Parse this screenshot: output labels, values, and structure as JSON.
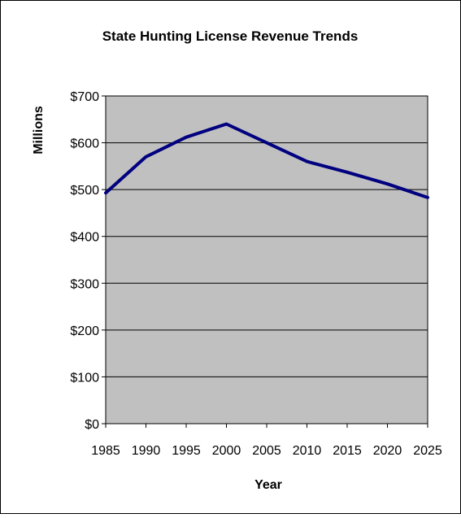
{
  "chart_data": {
    "type": "line",
    "title": "State Hunting License Revenue Trends",
    "xlabel": "Year",
    "ylabel": "Millions",
    "x_ticks": [
      "1985",
      "1990",
      "1995",
      "2000",
      "2005",
      "2010",
      "2015",
      "2020",
      "2025"
    ],
    "xlim": [
      1985,
      2025
    ],
    "y_ticks": [
      "$0",
      "$100",
      "$200",
      "$300",
      "$400",
      "$500",
      "$600",
      "$700"
    ],
    "ylim": [
      0,
      700
    ],
    "grid": true,
    "legend": "none",
    "series": [
      {
        "color": "#000080",
        "x": [
          1985,
          1990,
          1995,
          2000,
          2005,
          2010,
          2015,
          2020,
          2025
        ],
        "y": [
          493,
          570,
          612,
          640,
          600,
          560,
          537,
          512,
          483
        ]
      }
    ]
  },
  "colors": {
    "plot_background": "#c0c0c0",
    "line": "#000080",
    "gridline": "#000000",
    "frame": "#000000"
  }
}
